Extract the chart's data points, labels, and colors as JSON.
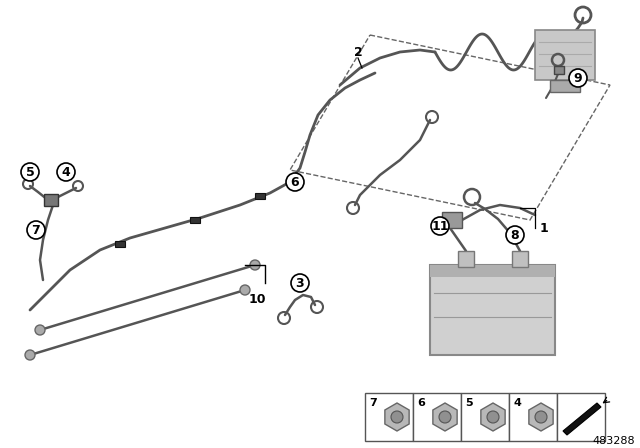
{
  "background_color": "#ffffff",
  "part_number": "483288",
  "cable_color": "#555555",
  "cable_lw": 2.0,
  "clip_color": "#333333",
  "callout_circle_color": "#ffffff",
  "callout_circle_edge": "#000000",
  "battery_fill": "#d0d0d0",
  "battery_edge": "#888888",
  "engine_fill": "#c8c8c8",
  "engine_edge": "#888888",
  "dashed_line_color": "#666666",
  "bottom_box_edge": "#555555",
  "nut_fill": "#b8b8b8",
  "nut_edge": "#666666",
  "font_size_callout": 9,
  "font_size_label": 9,
  "font_size_part": 8,
  "callout_labels": [
    "2",
    "3",
    "4",
    "5",
    "6",
    "7",
    "8",
    "9",
    "10",
    "11"
  ],
  "bottom_labels": [
    "7",
    "6",
    "5",
    "4"
  ]
}
